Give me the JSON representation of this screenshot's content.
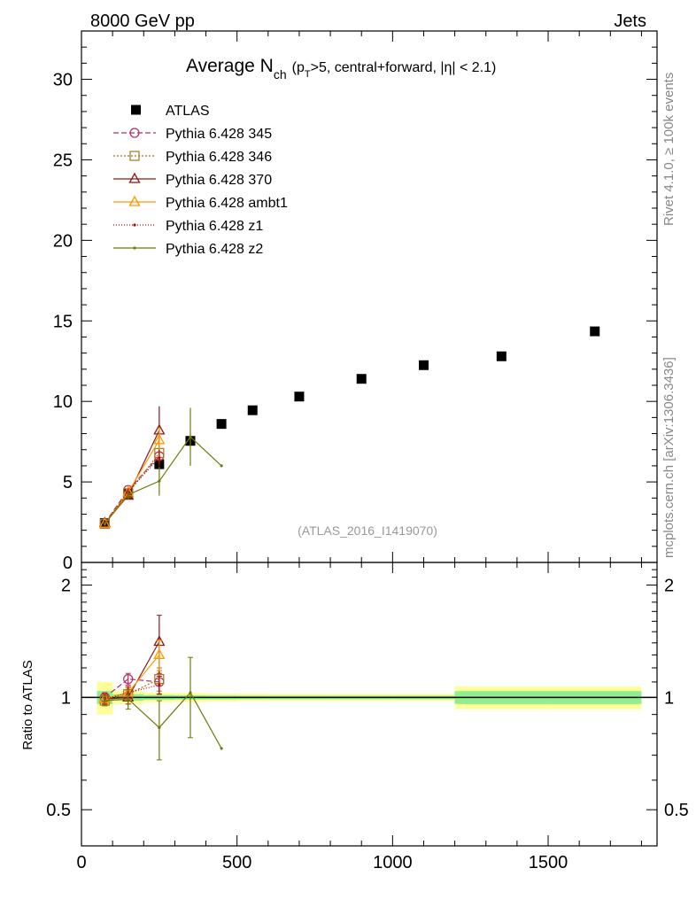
{
  "header": {
    "energy_label": "8000 GeV pp",
    "category_label": "Jets",
    "title_main": "Average N",
    "title_sub": "ch",
    "title_paren_open": "(p",
    "title_pt_sub": "T",
    "title_rest": ">5, central+forward, |η| < 2.1)",
    "rivet_label": "Rivet 4.1.0, ≥ 100k events",
    "mcplots_label": "mcplots.cern.ch [arXiv:1306.3436]",
    "analysis_label": "(ATLAS_2016_I1419070)"
  },
  "chart_data": [
    {
      "type": "scatter",
      "panel": "main",
      "title": "Average Nch (pT>5, central+forward, |η| < 2.1)",
      "xlim": [
        0,
        1850
      ],
      "ylim": [
        0,
        33
      ],
      "yticks": [
        0,
        5,
        10,
        15,
        20,
        25,
        30
      ],
      "ytick_labels": [
        "0",
        "5",
        "10",
        "15",
        "20",
        "25",
        "30"
      ],
      "legend_position": "top-left",
      "series": [
        {
          "name": "ATLAS",
          "style": "data",
          "color": "#000000",
          "x": [
            75,
            150,
            250,
            350,
            450,
            550,
            700,
            900,
            1100,
            1350,
            1650
          ],
          "y": [
            2.45,
            4.25,
            6.1,
            7.55,
            8.6,
            9.45,
            10.3,
            11.4,
            12.25,
            12.8,
            14.35
          ]
        },
        {
          "name": "Pythia 6.428 345",
          "style": "mc",
          "color": "#b03060",
          "marker": "circle",
          "dash": "6,3",
          "x": [
            75,
            150,
            250
          ],
          "y": [
            2.45,
            4.5,
            6.6
          ],
          "err": [
            0.1,
            0.2,
            0.5
          ]
        },
        {
          "name": "Pythia 6.428 346",
          "style": "mc",
          "color": "#a0781e",
          "marker": "square",
          "dash": "2,2",
          "x": [
            75,
            150,
            250
          ],
          "y": [
            2.4,
            4.3,
            6.8
          ],
          "err": [
            0.1,
            0.2,
            0.5
          ]
        },
        {
          "name": "Pythia 6.428 370",
          "style": "mc",
          "color": "#8b1a1a",
          "marker": "triangle",
          "dash": "",
          "x": [
            75,
            150,
            250
          ],
          "y": [
            2.45,
            4.15,
            8.2
          ],
          "err": [
            0.1,
            0.2,
            1.5
          ]
        },
        {
          "name": "Pythia 6.428 ambt1",
          "style": "mc",
          "color": "#ff9900",
          "marker": "triangle",
          "dash": "",
          "x": [
            75,
            150,
            250
          ],
          "y": [
            2.4,
            4.35,
            7.6
          ],
          "err": [
            0.1,
            0.2,
            0.8
          ]
        },
        {
          "name": "Pythia 6.428 z1",
          "style": "mc",
          "color": "#cc0000",
          "marker": "dot",
          "dash": "1,2",
          "x": [
            75,
            150,
            250
          ],
          "y": [
            2.4,
            4.4,
            6.5
          ],
          "err": [
            0.1,
            0.2,
            0.5
          ]
        },
        {
          "name": "Pythia 6.428 z2",
          "style": "mc",
          "color": "#707a0a",
          "marker": "dot",
          "dash": "",
          "x": [
            75,
            150,
            250,
            350,
            450
          ],
          "y": [
            2.4,
            4.2,
            5.05,
            7.8,
            6.0
          ],
          "err": [
            0.1,
            0.3,
            0.9,
            1.8,
            0
          ]
        }
      ]
    },
    {
      "type": "scatter",
      "panel": "ratio",
      "ylabel": "Ratio to ATLAS",
      "ylim": [
        0.4,
        2.3
      ],
      "yticks": [
        0.5,
        1,
        2
      ],
      "ytick_labels": [
        "0.5",
        "1",
        "2"
      ],
      "xticks": [
        0,
        500,
        1000,
        1500
      ],
      "xtick_labels": [
        "0",
        "500",
        "1000",
        "1500"
      ],
      "bins": [
        {
          "lo": 50,
          "hi": 100,
          "stat": 0.04,
          "tot": 0.1
        },
        {
          "lo": 100,
          "hi": 200,
          "stat": 0.02,
          "tot": 0.04
        },
        {
          "lo": 200,
          "hi": 300,
          "stat": 0.015,
          "tot": 0.03
        },
        {
          "lo": 300,
          "hi": 400,
          "stat": 0.013,
          "tot": 0.028
        },
        {
          "lo": 400,
          "hi": 500,
          "stat": 0.012,
          "tot": 0.025
        },
        {
          "lo": 500,
          "hi": 600,
          "stat": 0.011,
          "tot": 0.023
        },
        {
          "lo": 600,
          "hi": 800,
          "stat": 0.011,
          "tot": 0.022
        },
        {
          "lo": 800,
          "hi": 1000,
          "stat": 0.011,
          "tot": 0.022
        },
        {
          "lo": 1000,
          "hi": 1200,
          "stat": 0.011,
          "tot": 0.022
        },
        {
          "lo": 1200,
          "hi": 1500,
          "stat": 0.04,
          "tot": 0.07
        },
        {
          "lo": 1500,
          "hi": 1800,
          "stat": 0.04,
          "tot": 0.07
        }
      ],
      "series": [
        {
          "name": "Pythia 6.428 345",
          "color": "#b03060",
          "marker": "circle",
          "dash": "6,3",
          "x": [
            75,
            150,
            250
          ],
          "y": [
            1.0,
            1.12,
            1.1
          ],
          "err": [
            0.03,
            0.04,
            0.08
          ]
        },
        {
          "name": "Pythia 6.428 346",
          "color": "#a0781e",
          "marker": "square",
          "dash": "2,2",
          "x": [
            75,
            150,
            250
          ],
          "y": [
            0.98,
            1.02,
            1.12
          ],
          "err": [
            0.03,
            0.04,
            0.08
          ]
        },
        {
          "name": "Pythia 6.428 370",
          "color": "#8b1a1a",
          "marker": "triangle",
          "dash": "",
          "x": [
            75,
            150,
            250
          ],
          "y": [
            0.99,
            1.0,
            1.41
          ],
          "err": [
            0.03,
            0.04,
            0.25
          ]
        },
        {
          "name": "Pythia 6.428 ambt1",
          "color": "#ff9900",
          "marker": "triangle",
          "dash": "",
          "x": [
            75,
            150,
            250
          ],
          "y": [
            0.99,
            1.03,
            1.3
          ],
          "err": [
            0.03,
            0.04,
            0.12
          ]
        },
        {
          "name": "Pythia 6.428 z1",
          "color": "#cc0000",
          "marker": "dot",
          "dash": "1,2",
          "x": [
            75,
            150,
            250
          ],
          "y": [
            0.99,
            1.03,
            1.08
          ],
          "err": [
            0.03,
            0.04,
            0.06
          ]
        },
        {
          "name": "Pythia 6.428 z2",
          "color": "#707a0a",
          "marker": "dot",
          "dash": "",
          "x": [
            75,
            150,
            250,
            350,
            450
          ],
          "y": [
            0.98,
            0.99,
            0.83,
            1.03,
            0.73
          ],
          "err": [
            0.03,
            0.06,
            0.15,
            0.25,
            0
          ]
        }
      ]
    }
  ]
}
